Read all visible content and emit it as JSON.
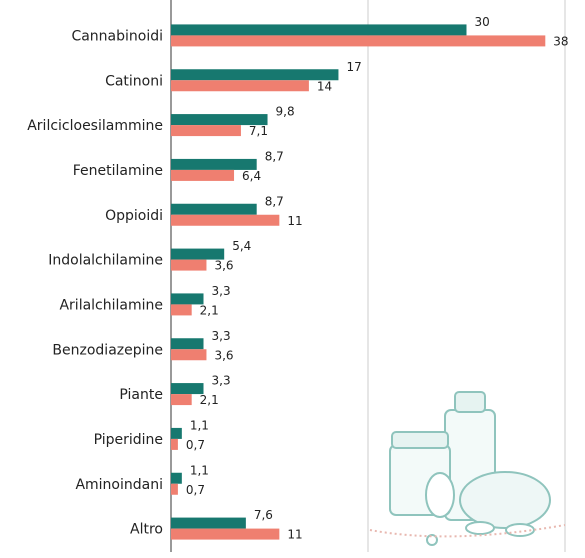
{
  "chart_data": {
    "type": "hbar",
    "categories": [
      "Cannabinoidi",
      "Catinoni",
      "Arilcicloesilammine",
      "Fenetilamine",
      "Oppioidi",
      "Indolalchilamine",
      "Arilalchilamine",
      "Benzodiazepine",
      "Piante",
      "Piperidine",
      "Aminoindani",
      "Altro"
    ],
    "series": [
      {
        "color": "#17786f",
        "values": [
          30,
          17,
          9.8,
          8.7,
          8.7,
          5.4,
          3.3,
          3.3,
          3.3,
          1.1,
          1.1,
          7.6
        ],
        "value_labels": [
          "30",
          "17",
          "9,8",
          "8,7",
          "8,7",
          "5,4",
          "3,3",
          "3,3",
          "3,3",
          "1,1",
          "1,1",
          "7,6"
        ]
      },
      {
        "color": "#ef7f70",
        "values": [
          38,
          14,
          7.1,
          6.4,
          11,
          3.6,
          2.1,
          3.6,
          2.1,
          0.7,
          0.7,
          11
        ],
        "value_labels": [
          "38",
          "14",
          "7,1",
          "6,4",
          "11",
          "3,6",
          "2,1",
          "3,6",
          "2,1",
          "0,7",
          "0,7",
          "11"
        ]
      }
    ],
    "xlim": [
      0,
      40
    ],
    "xticks": [
      20,
      40
    ],
    "grid": true
  }
}
